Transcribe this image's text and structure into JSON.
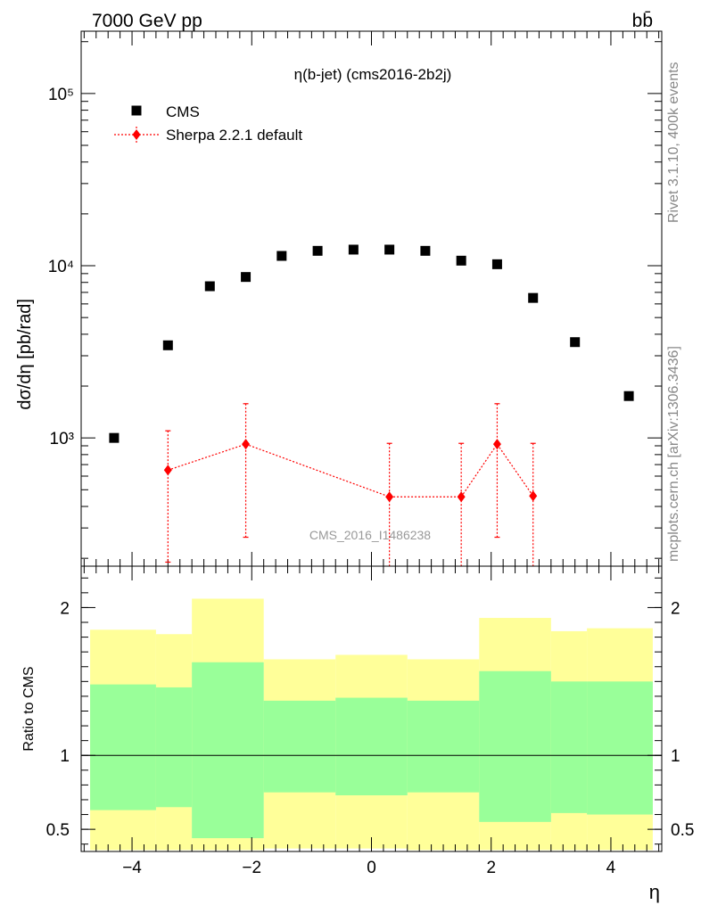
{
  "header": {
    "left": "7000 GeV pp",
    "right": "bb̄"
  },
  "side_labels": {
    "rivet": "Rivet 3.1.10,  400k events",
    "mcplots": "mcplots.cern.ch [arXiv:1306.3436]"
  },
  "colors": {
    "cms": "#000000",
    "sherpa": "#ff0000",
    "band_outer": "#ffff99",
    "band_inner": "#99ff99"
  },
  "chart_data": [
    {
      "type": "scatter",
      "title": "η(b-jet) (cms2016-2b2j)",
      "ylabel": "dσ/dη [pb/rad]",
      "yscale": "log",
      "ylim": [
        180,
        230000
      ],
      "xlim": [
        -4.85,
        4.85
      ],
      "yticks": [
        {
          "value": 1000,
          "label": "10³"
        },
        {
          "value": 10000,
          "label": "10⁴"
        },
        {
          "value": 100000,
          "label": "10⁵"
        }
      ],
      "watermark": "CMS_2016_I1486238",
      "legend": {
        "position": "top-left"
      },
      "series": [
        {
          "name": "CMS",
          "marker": "square",
          "x": [
            -4.3,
            -3.4,
            -2.7,
            -2.1,
            -1.5,
            -0.9,
            -0.3,
            0.3,
            0.9,
            1.5,
            2.1,
            2.7,
            3.4,
            4.3
          ],
          "y": [
            1000,
            3450,
            7600,
            8600,
            11400,
            12200,
            12400,
            12400,
            12200,
            10700,
            10200,
            6500,
            3600,
            1750
          ]
        },
        {
          "name": "Sherpa 2.2.1 default",
          "marker": "diamond",
          "line": "dotted",
          "x": [
            -3.4,
            -2.1,
            0.3,
            1.5,
            2.1,
            2.7
          ],
          "y": [
            650,
            920,
            455,
            455,
            920,
            460
          ],
          "err_low": [
            190,
            265,
            150,
            150,
            265,
            150
          ],
          "err_high": [
            1100,
            1580,
            930,
            930,
            1580,
            930
          ]
        }
      ]
    },
    {
      "type": "area",
      "ylabel": "Ratio to CMS",
      "xlabel": "η",
      "xlim": [
        -4.85,
        4.85
      ],
      "ylim": [
        0.35,
        2.28
      ],
      "xticks": [
        -4,
        -2,
        0,
        2,
        4
      ],
      "xtick_labels": [
        "−4",
        "−2",
        "0",
        "2",
        "4"
      ],
      "yticks": [
        0.5,
        1,
        2
      ],
      "ytick_labels": [
        "0.5",
        "1",
        "2"
      ],
      "reference_line": 1,
      "bins": [
        {
          "lo": -4.7,
          "hi": -3.6,
          "outer": [
            0.36,
            1.85
          ],
          "inner": [
            0.63,
            1.48
          ]
        },
        {
          "lo": -3.6,
          "hi": -3.0,
          "outer": [
            0.36,
            1.82
          ],
          "inner": [
            0.65,
            1.46
          ]
        },
        {
          "lo": -3.0,
          "hi": -1.8,
          "outer": [
            0.36,
            2.06
          ],
          "inner": [
            0.44,
            1.63
          ]
        },
        {
          "lo": -1.8,
          "hi": -0.6,
          "outer": [
            0.37,
            1.65
          ],
          "inner": [
            0.75,
            1.37
          ]
        },
        {
          "lo": -0.6,
          "hi": 0.6,
          "outer": [
            0.37,
            1.68
          ],
          "inner": [
            0.73,
            1.39
          ]
        },
        {
          "lo": 0.6,
          "hi": 1.8,
          "outer": [
            0.36,
            1.65
          ],
          "inner": [
            0.75,
            1.37
          ]
        },
        {
          "lo": 1.8,
          "hi": 3.0,
          "outer": [
            0.36,
            1.93
          ],
          "inner": [
            0.55,
            1.57
          ]
        },
        {
          "lo": 3.0,
          "hi": 3.6,
          "outer": [
            0.36,
            1.84
          ],
          "inner": [
            0.61,
            1.5
          ]
        },
        {
          "lo": 3.6,
          "hi": 4.7,
          "outer": [
            0.36,
            1.86
          ],
          "inner": [
            0.6,
            1.5
          ]
        }
      ]
    }
  ]
}
